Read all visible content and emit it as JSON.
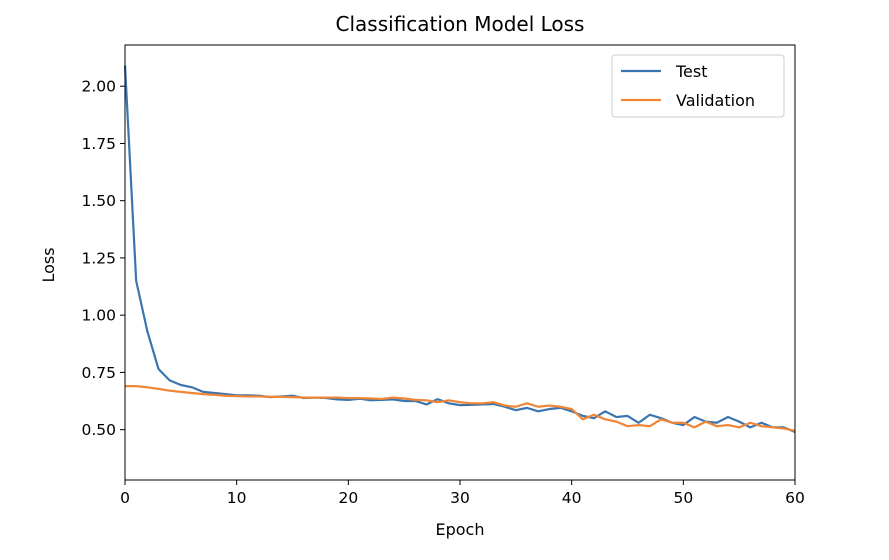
{
  "chart_data": {
    "type": "line",
    "title": "Classification Model Loss",
    "xlabel": "Epoch",
    "ylabel": "Loss",
    "xlim": [
      0,
      60
    ],
    "ylim": [
      0.28,
      2.18
    ],
    "x_ticks": [
      0,
      10,
      20,
      30,
      40,
      50,
      60
    ],
    "x_tick_labels": [
      "0",
      "10",
      "20",
      "30",
      "40",
      "50",
      "60"
    ],
    "y_ticks": [
      0.5,
      0.75,
      1.0,
      1.25,
      1.5,
      1.75,
      2.0
    ],
    "y_tick_labels": [
      "0.50",
      "0.75",
      "1.00",
      "1.25",
      "1.50",
      "1.75",
      "2.00"
    ],
    "grid": false,
    "legend_position": "top-right",
    "x": [
      0,
      1,
      2,
      3,
      4,
      5,
      6,
      7,
      8,
      9,
      10,
      11,
      12,
      13,
      14,
      15,
      16,
      17,
      18,
      19,
      20,
      21,
      22,
      23,
      24,
      25,
      26,
      27,
      28,
      29,
      30,
      31,
      32,
      33,
      34,
      35,
      36,
      37,
      38,
      39,
      40,
      41,
      42,
      43,
      44,
      45,
      46,
      47,
      48,
      49,
      50,
      51,
      52,
      53,
      54,
      55,
      56,
      57,
      58,
      59,
      60
    ],
    "series": [
      {
        "name": "Test",
        "color": "#3b75af",
        "values": [
          2.09,
          1.15,
          0.93,
          0.765,
          0.715,
          0.695,
          0.685,
          0.665,
          0.66,
          0.655,
          0.65,
          0.65,
          0.648,
          0.642,
          0.645,
          0.648,
          0.638,
          0.64,
          0.638,
          0.632,
          0.63,
          0.635,
          0.628,
          0.63,
          0.632,
          0.625,
          0.625,
          0.61,
          0.633,
          0.615,
          0.607,
          0.608,
          0.61,
          0.612,
          0.6,
          0.585,
          0.595,
          0.58,
          0.59,
          0.595,
          0.58,
          0.56,
          0.55,
          0.58,
          0.555,
          0.56,
          0.53,
          0.565,
          0.55,
          0.53,
          0.52,
          0.555,
          0.535,
          0.53,
          0.555,
          0.535,
          0.51,
          0.53,
          0.51,
          0.51,
          0.49
        ]
      },
      {
        "name": "Validation",
        "color": "#ef8636",
        "values": [
          0.69,
          0.69,
          0.685,
          0.678,
          0.67,
          0.665,
          0.66,
          0.655,
          0.652,
          0.648,
          0.646,
          0.645,
          0.645,
          0.643,
          0.643,
          0.642,
          0.64,
          0.64,
          0.64,
          0.64,
          0.638,
          0.638,
          0.636,
          0.634,
          0.64,
          0.636,
          0.63,
          0.628,
          0.62,
          0.628,
          0.62,
          0.615,
          0.615,
          0.62,
          0.605,
          0.6,
          0.615,
          0.6,
          0.605,
          0.6,
          0.59,
          0.545,
          0.565,
          0.545,
          0.535,
          0.515,
          0.52,
          0.515,
          0.545,
          0.53,
          0.53,
          0.51,
          0.535,
          0.515,
          0.52,
          0.51,
          0.53,
          0.515,
          0.51,
          0.505,
          0.495
        ]
      }
    ]
  }
}
